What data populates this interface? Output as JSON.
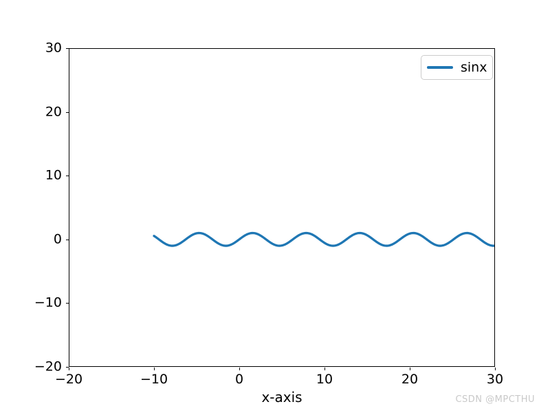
{
  "chart_data": {
    "type": "line",
    "title": "",
    "xlabel": "x-axis",
    "ylabel": "",
    "xlim": [
      -20,
      30
    ],
    "ylim": [
      -20,
      30
    ],
    "grid": false,
    "x_ticks": [
      {
        "value": -20,
        "label": "−20"
      },
      {
        "value": -10,
        "label": "−10"
      },
      {
        "value": 0,
        "label": "0"
      },
      {
        "value": 10,
        "label": "10"
      },
      {
        "value": 20,
        "label": "20"
      },
      {
        "value": 30,
        "label": "30"
      }
    ],
    "y_ticks": [
      {
        "value": -20,
        "label": "−20"
      },
      {
        "value": -10,
        "label": "−10"
      },
      {
        "value": 0,
        "label": "0"
      },
      {
        "value": 10,
        "label": "10"
      },
      {
        "value": 20,
        "label": "20"
      },
      {
        "value": 30,
        "label": "30"
      }
    ],
    "series": [
      {
        "name": "sinx",
        "function": "sin(x)",
        "amplitude": 1,
        "x_min": -10,
        "x_max": 30,
        "samples": 400,
        "color": "#1f77b4",
        "line_width": 3.3
      }
    ],
    "legend": {
      "position": "upper right",
      "entries": [
        {
          "label": "sinx",
          "color": "#1f77b4"
        }
      ]
    }
  },
  "watermark": {
    "text": "CSDN @MPCTHU",
    "color": "#c9c9c9"
  }
}
